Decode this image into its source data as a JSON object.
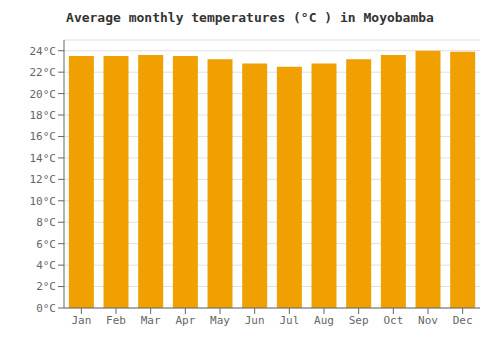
{
  "chart_data": {
    "type": "bar",
    "title": "Average monthly temperatures (°C ) in Moyobamba",
    "categories": [
      "Jan",
      "Feb",
      "Mar",
      "Apr",
      "May",
      "Jun",
      "Jul",
      "Aug",
      "Sep",
      "Oct",
      "Nov",
      "Dec"
    ],
    "values": [
      23.5,
      23.5,
      23.6,
      23.5,
      23.2,
      22.8,
      22.5,
      22.8,
      23.2,
      23.6,
      24.0,
      23.9
    ],
    "color": "#F0A000",
    "ylim": [
      0,
      25
    ],
    "yticks": [
      {
        "value": 0,
        "label": "0°C"
      },
      {
        "value": 2,
        "label": "2°C"
      },
      {
        "value": 4,
        "label": "4°C"
      },
      {
        "value": 6,
        "label": "6°C"
      },
      {
        "value": 8,
        "label": "8°C"
      },
      {
        "value": 10,
        "label": "10°C"
      },
      {
        "value": 12,
        "label": "12°C"
      },
      {
        "value": 14,
        "label": "14°C"
      },
      {
        "value": 16,
        "label": "16°C"
      },
      {
        "value": 18,
        "label": "18°C"
      },
      {
        "value": 20,
        "label": "20°C"
      },
      {
        "value": 22,
        "label": "22°C"
      },
      {
        "value": 24,
        "label": "24°C"
      }
    ],
    "grid": true
  }
}
